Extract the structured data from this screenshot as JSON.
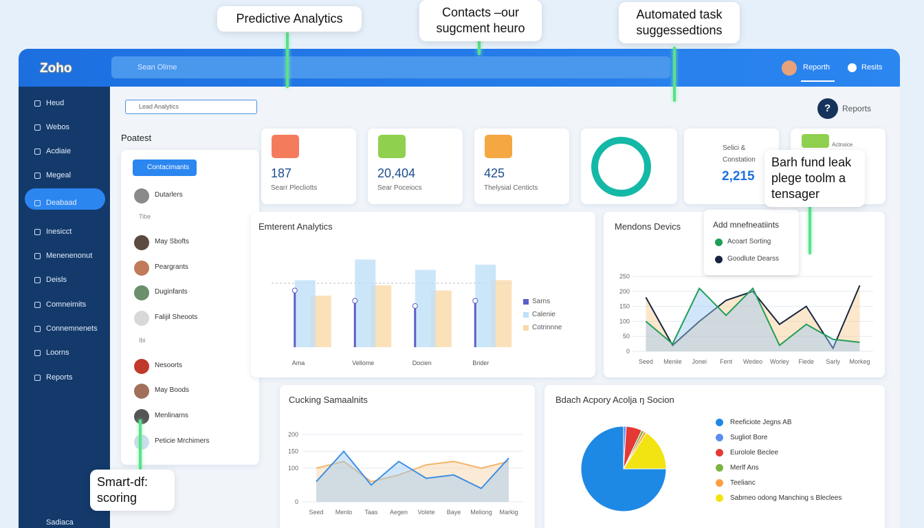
{
  "callouts": [
    "Predictive Analytics",
    "Contacts –our sugcment heuro",
    "Automated task suggessedtions",
    "Barh fund leak plege toolm a tensager",
    "Smart-df: scoring"
  ],
  "header": {
    "logo": "Zoho",
    "search": "Sean Olime",
    "nav": [
      "Reporth",
      "Resits"
    ]
  },
  "sidebar": {
    "items": [
      "Heud",
      "Webos",
      "Acdiaie",
      "Megeal",
      "Deabaad",
      "Inesicct",
      "Menenenonut",
      "Deisls",
      "Comneimits",
      "Connemnenets",
      "Loorns",
      "Reports"
    ],
    "footer": "Sadiaca"
  },
  "panel": {
    "search": "Lead Analytics",
    "title": "Poatest",
    "button": "Contacimants",
    "contacts": [
      "Dutarlers",
      "May Sbofts",
      "Peargrants",
      "Duginfants",
      "Falijil Sheoots",
      "Nesoorts",
      "May Boods",
      "Menlinarns",
      "Peticie Mrchimers"
    ],
    "dividers": [
      "Tibe",
      "Ibi"
    ]
  },
  "reports": {
    "icon": "?",
    "label": "Reports"
  },
  "cards": [
    {
      "value": "187",
      "label": "Searr Plecliotts"
    },
    {
      "value": "20,404",
      "label": "Sear Poceiocs"
    },
    {
      "value": "425",
      "label": "Thelysial Centicts"
    },
    {
      "value": "2,215",
      "label": "Selici & Constation"
    },
    {
      "label": "Actnsice"
    }
  ],
  "bar_chart": {
    "type": "bar",
    "title": "Emterent Analytics",
    "categories": [
      "Ama",
      "Vellome",
      "Docien",
      "Brider"
    ],
    "ylim": [
      0,
      100
    ],
    "series": [
      {
        "name": "Sarns",
        "color": "#5b5fc7",
        "values": [
          55,
          45,
          40,
          45
        ]
      },
      {
        "name": "Calenie",
        "color": "#bfe0f7",
        "values": [
          65,
          85,
          75,
          80
        ]
      },
      {
        "name": "Cotrinnne",
        "color": "#f9d9a8",
        "values": [
          50,
          60,
          55,
          65
        ]
      }
    ]
  },
  "line_chart": {
    "type": "line",
    "title": "Mendons Devics",
    "categories": [
      "Seed",
      "Meniie",
      "Jonei",
      "Fent",
      "Wedeo",
      "Worley",
      "Fiede",
      "Sarly",
      "Morkeg"
    ],
    "ylim": [
      0,
      250
    ],
    "yticks": [
      0,
      50,
      100,
      150,
      200,
      250
    ],
    "legend_title": "Add mnefneatiints",
    "series": [
      {
        "name": "Acoart Sorting",
        "color": "#1f9d55",
        "values": [
          100,
          25,
          210,
          120,
          210,
          20,
          90,
          40,
          30
        ]
      },
      {
        "name": "Goodlute Dearss",
        "color": "#16243f",
        "values": [
          180,
          20,
          100,
          170,
          200,
          90,
          150,
          10,
          220
        ]
      }
    ]
  },
  "area_chart": {
    "type": "line",
    "title": "Cucking Samaalnits",
    "categories": [
      "Seed",
      "Menlo",
      "Taas",
      "Aegen",
      "Volete",
      "Baye",
      "Meliong",
      "Markig"
    ],
    "ylim": [
      0,
      200
    ],
    "yticks": [
      0,
      100,
      150,
      200
    ],
    "series": [
      {
        "color": "#3d8fe0",
        "values": [
          60,
          150,
          50,
          120,
          70,
          80,
          40,
          130
        ]
      },
      {
        "color": "#f3b46b",
        "values": [
          100,
          120,
          60,
          80,
          110,
          120,
          100,
          120
        ]
      }
    ]
  },
  "pie_chart": {
    "type": "pie",
    "title": "Bdach Acpory Acolja ŋ Socion",
    "categories": [
      "Reeficiote Jegns AB",
      "Sugliot Bore",
      "Eurolole Beclee",
      "Merlf Ans",
      "Teelianc",
      "Sabmeo odong Manching s Bleclees"
    ],
    "values": [
      75,
      1,
      6,
      1,
      1,
      16
    ],
    "colors": [
      "#1e88e5",
      "#5b8def",
      "#e53935",
      "#7cb342",
      "#ff9f43",
      "#f2e313"
    ]
  }
}
